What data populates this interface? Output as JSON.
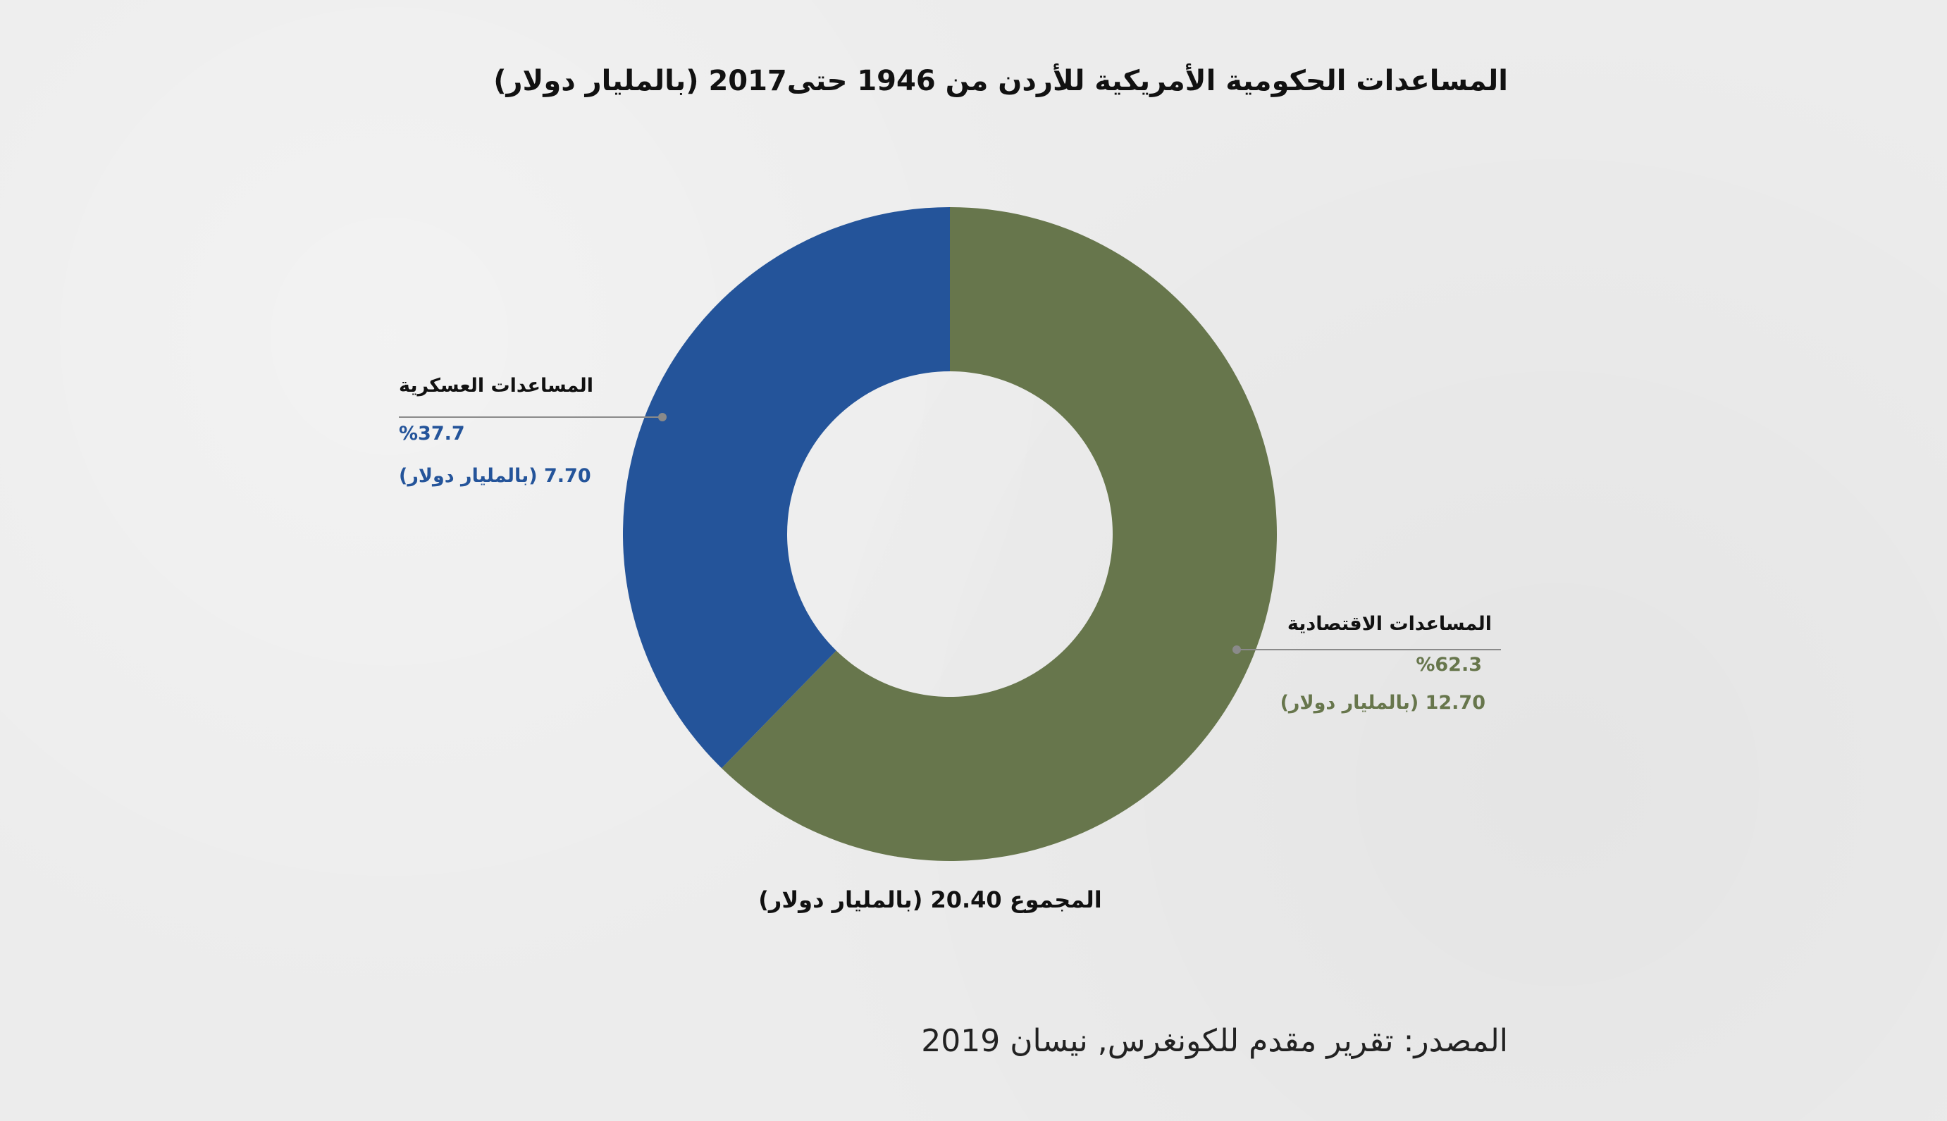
{
  "chart_data": {
    "type": "pie",
    "title": "المساعدات الحكومية الأمريكية للأردن من 1946 حتى2017 (بالمليار دولار)",
    "slices": [
      {
        "label": "المساعدات الاقتصادية",
        "percent": 62.3,
        "percent_text": "%62.3",
        "value": 12.7,
        "value_text": "12.70 (بالمليار دولار)",
        "color": "#67764c"
      },
      {
        "label": "المساعدات العسكرية",
        "percent": 37.7,
        "percent_text": "%37.7",
        "value": 7.7,
        "value_text": "7.70 (بالمليار دولار)",
        "color": "#24549a"
      }
    ],
    "total_text": "المجموع 20.40 (بالمليار دولار)",
    "donut": true
  },
  "source": "المصدر: تقرير مقدم للكونغرس, نيسان 2019",
  "colors": {
    "background": "#ececec",
    "leader_line": "#8a8a8a"
  }
}
